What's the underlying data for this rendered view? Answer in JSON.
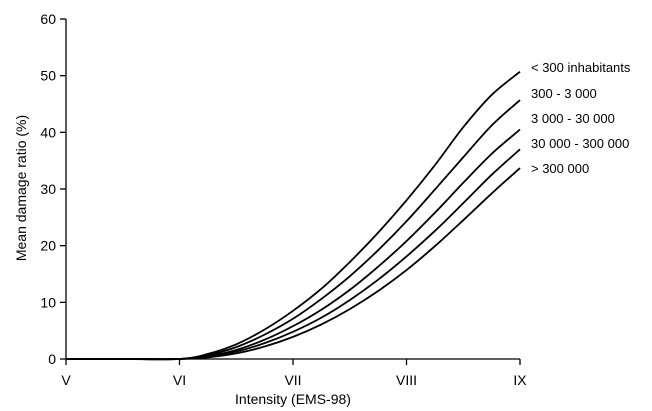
{
  "chart_data": {
    "type": "line",
    "title": "",
    "xlabel": "Intensity (EMS-98)",
    "ylabel": "Mean damage ratio (%)",
    "x": [
      5,
      5.5,
      6,
      6.25,
      6.5,
      6.75,
      7,
      7.25,
      7.5,
      7.75,
      8,
      8.25,
      8.5,
      8.75,
      9
    ],
    "xticks": [
      5,
      6,
      7,
      8,
      9
    ],
    "xtick_labels": [
      "V",
      "VI",
      "VII",
      "VIII",
      "IX"
    ],
    "xlim": [
      5,
      9
    ],
    "ylim": [
      0,
      60
    ],
    "yticks": [
      0,
      10,
      20,
      30,
      40,
      50,
      60
    ],
    "grid": false,
    "legend": "inline labels at right end of curves",
    "series": [
      {
        "name": "< 300 inhabitants",
        "values": [
          0,
          0,
          0,
          0.9,
          2.6,
          5.2,
          8.5,
          12.4,
          17.1,
          22.3,
          28,
          34.2,
          40.9,
          46.6,
          50.7
        ]
      },
      {
        "name": "300 - 3 000",
        "values": [
          0,
          0,
          0,
          0.7,
          2.1,
          4.3,
          7.1,
          10.6,
          14.6,
          19.2,
          24.3,
          29.9,
          35.6,
          41.2,
          45.7
        ]
      },
      {
        "name": "3 000 - 30 000",
        "values": [
          0,
          0,
          0,
          0.5,
          1.6,
          3.4,
          5.8,
          8.7,
          12.2,
          16.3,
          20.8,
          25.8,
          31.1,
          36.2,
          40.5
        ]
      },
      {
        "name": "30 000 - 300 000",
        "values": [
          0,
          0,
          0,
          0.4,
          1.3,
          2.8,
          4.8,
          7.3,
          10.4,
          14,
          18.1,
          22.6,
          27.5,
          32.5,
          37
        ]
      },
      {
        "name": "> 300 000",
        "values": [
          0,
          0,
          0,
          0.3,
          1,
          2.2,
          3.9,
          6.1,
          8.8,
          12,
          15.7,
          19.9,
          24.5,
          29.2,
          33.7
        ]
      }
    ]
  }
}
